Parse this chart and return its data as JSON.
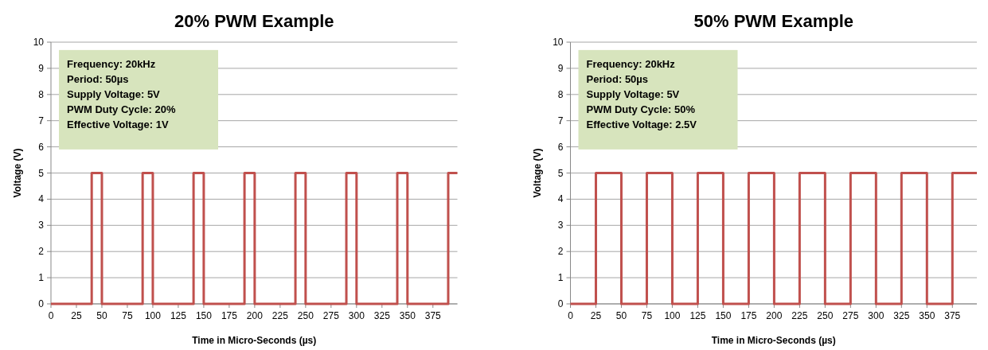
{
  "chart_data": [
    {
      "type": "line",
      "title": "20% PWM Example",
      "xlabel": "Time in Micro-Seconds (µs)",
      "ylabel": "Voltage (V)",
      "xlim": [
        0,
        399
      ],
      "ylim": [
        0,
        10
      ],
      "xticks": [
        0,
        25,
        50,
        75,
        100,
        125,
        150,
        175,
        200,
        225,
        250,
        275,
        300,
        325,
        350,
        375
      ],
      "yticks": [
        0,
        1,
        2,
        3,
        4,
        5,
        6,
        7,
        8,
        9,
        10
      ],
      "grid": "y",
      "annotations": [
        "Frequency: 20kHz",
        "Period: 50µs",
        "Supply Voltage: 5V",
        "PWM Duty Cycle: 20%",
        "Effective Voltage: 1V"
      ],
      "series": [
        {
          "color": "#c0504d",
          "x": [
            0,
            40,
            40,
            50,
            50,
            90,
            90,
            100,
            100,
            140,
            140,
            150,
            150,
            190,
            190,
            200,
            200,
            240,
            240,
            250,
            250,
            290,
            290,
            300,
            300,
            340,
            340,
            350,
            350,
            390,
            390,
            399
          ],
          "values": [
            0,
            0,
            5,
            5,
            0,
            0,
            5,
            5,
            0,
            0,
            5,
            5,
            0,
            0,
            5,
            5,
            0,
            0,
            5,
            5,
            0,
            0,
            5,
            5,
            0,
            0,
            5,
            5,
            0,
            0,
            5,
            5
          ]
        }
      ]
    },
    {
      "type": "line",
      "title": "50% PWM Example",
      "xlabel": "Time in Micro-Seconds (µs)",
      "ylabel": "Voltage (V)",
      "xlim": [
        0,
        399
      ],
      "ylim": [
        0,
        10
      ],
      "xticks": [
        0,
        25,
        50,
        75,
        100,
        125,
        150,
        175,
        200,
        225,
        250,
        275,
        300,
        325,
        350,
        375
      ],
      "yticks": [
        0,
        1,
        2,
        3,
        4,
        5,
        6,
        7,
        8,
        9,
        10
      ],
      "grid": "y",
      "annotations": [
        "Frequency: 20kHz",
        "Period: 50µs",
        "Supply Voltage: 5V",
        "PWM Duty Cycle: 50%",
        "Effective Voltage: 2.5V"
      ],
      "series": [
        {
          "color": "#c0504d",
          "x": [
            0,
            25,
            25,
            50,
            50,
            75,
            75,
            100,
            100,
            125,
            125,
            150,
            150,
            175,
            175,
            200,
            200,
            225,
            225,
            250,
            250,
            275,
            275,
            300,
            300,
            325,
            325,
            350,
            350,
            375,
            375,
            399
          ],
          "values": [
            0,
            0,
            5,
            5,
            0,
            0,
            5,
            5,
            0,
            0,
            5,
            5,
            0,
            0,
            5,
            5,
            0,
            0,
            5,
            5,
            0,
            0,
            5,
            5,
            0,
            0,
            5,
            5,
            0,
            0,
            5,
            5
          ]
        }
      ]
    }
  ]
}
